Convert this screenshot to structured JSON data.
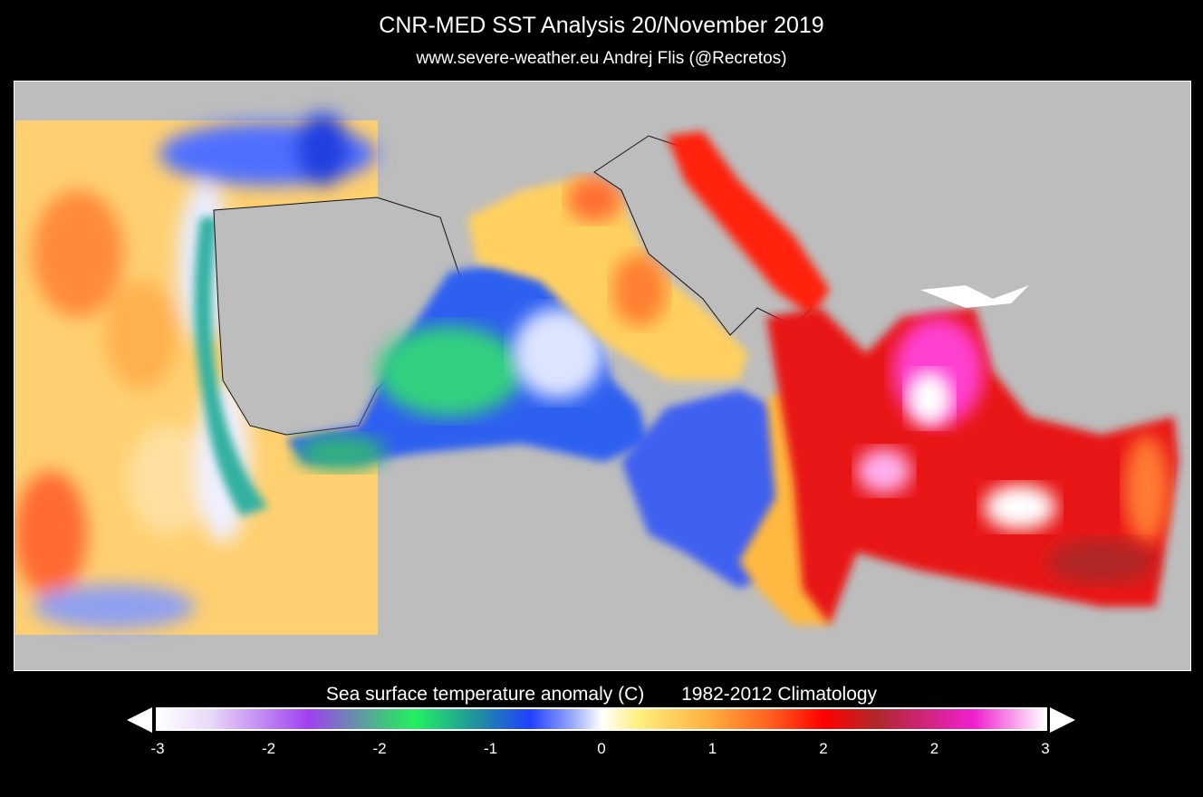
{
  "header": {
    "title": "CNR-MED SST Analysis  20/November 2019",
    "subtitle": "www.severe-weather.eu   Andrej Flis (@Recretos)"
  },
  "colorbar": {
    "title": "Sea surface temperature anomaly (C)       1982-2012 Climatology",
    "ticks": [
      "-3",
      "-2",
      "-2",
      "-1",
      "0",
      "1",
      "2",
      "2",
      "3"
    ],
    "range": [
      -3,
      3
    ],
    "colors": [
      "#ffffff",
      "#a040f0",
      "#22f060",
      "#2040ff",
      "#ffffff",
      "#fff080",
      "#ff6020",
      "#ff0000",
      "#b02828",
      "#f020d0",
      "#ffffff"
    ],
    "extends": "both"
  },
  "map": {
    "land_color": "#bdbdbd"
  }
}
